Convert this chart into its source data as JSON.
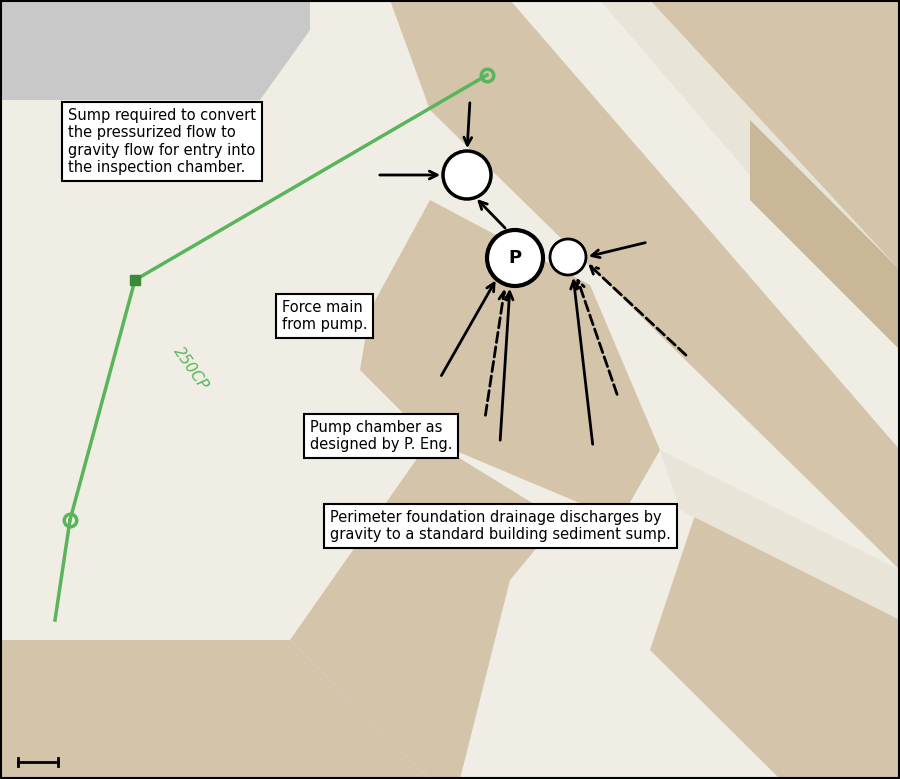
{
  "bg_color": "#f0ede4",
  "gray_color": "#c8c8c8",
  "tan_color": "#d4c4aa",
  "tan_dark": "#c8b898",
  "road_light": "#e8e4d8",
  "green_color": "#5ab55a",
  "green_dark": "#3a8a3a",
  "box_bg": "#ffffff",
  "box_edge": "#000000",
  "label_sump": "Sump required to convert\nthe pressurized flow to\ngravity flow for entry into\nthe inspection chamber.",
  "label_force": "Force main\nfrom pump.",
  "label_pump": "Pump chamber as\ndesigned by P. Eng.",
  "label_perimeter": "Perimeter foundation drainage discharges by\ngravity to a standard building sediment sump.",
  "label_250cp": "250CP"
}
